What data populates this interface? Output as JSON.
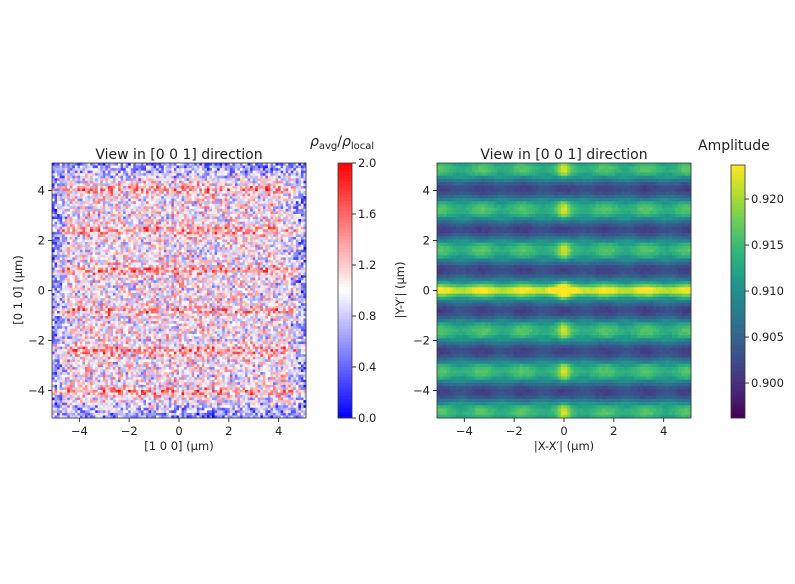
{
  "chart_data": [
    {
      "type": "heatmap",
      "title": "View in [0 0 1] direction",
      "xlabel": "[1 0 0] (μm)",
      "ylabel": "[0 1 0] (μm)",
      "xlim": [
        -5.1,
        5.1
      ],
      "ylim": [
        -5.1,
        5.1
      ],
      "xticks": [
        -4,
        -2,
        0,
        2,
        4
      ],
      "yticks": [
        -4,
        -2,
        0,
        2,
        4
      ],
      "xtick_labels": [
        "−4",
        "−2",
        "0",
        "2",
        "4"
      ],
      "ytick_labels": [
        "−4",
        "−2",
        "0",
        "2",
        "4"
      ],
      "colormap": "bwr",
      "colorbar": {
        "label_main_1": "ρ",
        "label_sub_1": "avg",
        "label_slash": "/",
        "label_main_2": "ρ",
        "label_sub_2": "local",
        "range": [
          0.0,
          2.0
        ],
        "ticks": [
          0.0,
          0.4,
          0.8,
          1.2,
          1.6,
          2.0
        ],
        "tick_labels": [
          "0.0",
          "0.4",
          "0.8",
          "1.2",
          "1.6",
          "2.0"
        ]
      },
      "features": "noisy map around 1.0; red (high) horizontal streaks near y = 4, 2.4, 0.8, -0.8, -2.4, -4; blue (low) near the borders"
    },
    {
      "type": "heatmap",
      "title": "View in [0 0 1] direction",
      "xlabel": "|X-X′| (μm)",
      "ylabel": "|Y-Y′| (μm)",
      "xlim": [
        -5.1,
        5.1
      ],
      "ylim": [
        -5.1,
        5.1
      ],
      "xticks": [
        -4,
        -2,
        0,
        2,
        4
      ],
      "yticks": [
        -4,
        -2,
        0,
        2,
        4
      ],
      "xtick_labels": [
        "−4",
        "−2",
        "0",
        "2",
        "4"
      ],
      "ytick_labels": [
        "−4",
        "−2",
        "0",
        "2",
        "4"
      ],
      "colormap": "viridis",
      "colorbar": {
        "label": "Amplitude",
        "range": [
          0.8962,
          0.9237
        ],
        "ticks": [
          0.9,
          0.905,
          0.91,
          0.915,
          0.92
        ],
        "tick_labels": [
          "0.900",
          "0.905",
          "0.910",
          "0.915",
          "0.920"
        ]
      },
      "features": "bright horizontal band at y = 0 with peak at origin; bright bands near y = ±1.6, ±3.2, ±4.9; dark bands near y = ±1, ±2.7, ±4.3; bright vertical line at x = 0"
    }
  ]
}
